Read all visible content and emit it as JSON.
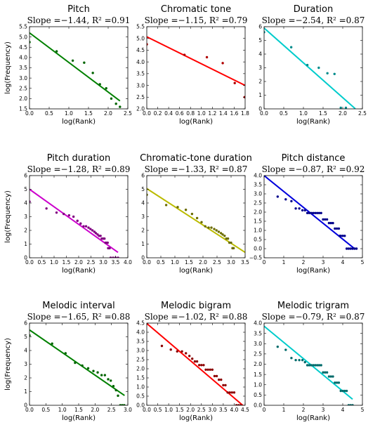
{
  "chart_data": [
    {
      "type": "scatter",
      "title": "Pitch",
      "subtitle": "Slope =−1.44,  R² =0.91",
      "xlabel": "log(Rank)",
      "ylabel": "log(Frequency)",
      "xlim": [
        0,
        2.5
      ],
      "ylim": [
        1.5,
        5.5
      ],
      "xticks": [
        "0.0",
        "0.5",
        "1.0",
        "1.5",
        "2.0",
        "2.5"
      ],
      "yticks": [
        "1.5",
        "2.0",
        "2.5",
        "3.0",
        "3.5",
        "4.0",
        "4.5",
        "5.0",
        "5.5"
      ],
      "fit": {
        "intercept": 5.2,
        "slope": -1.44,
        "x_end": 2.3,
        "color": "#008000"
      },
      "points": [
        [
          0,
          4.75
        ],
        [
          0.69,
          4.3
        ],
        [
          1.1,
          3.85
        ],
        [
          1.39,
          3.75
        ],
        [
          1.61,
          3.25
        ],
        [
          1.79,
          2.7
        ],
        [
          1.95,
          2.5
        ],
        [
          2.08,
          2.0
        ],
        [
          2.2,
          1.75
        ],
        [
          2.3,
          1.6
        ]
      ],
      "point_color": "#006400"
    },
    {
      "type": "scatter",
      "title": "Chromatic tone",
      "subtitle": "Slope =−1.15,  R² =0.79",
      "xlabel": "log(Rank)",
      "ylabel": "",
      "xlim": [
        0,
        1.8
      ],
      "ylim": [
        2.0,
        5.5
      ],
      "xticks": [
        "0.0",
        "0.2",
        "0.4",
        "0.6",
        "0.8",
        "1.0",
        "1.2",
        "1.4",
        "1.6",
        "1.8"
      ],
      "yticks": [
        "2.0",
        "2.5",
        "3.0",
        "3.5",
        "4.0",
        "4.5",
        "5.0",
        "5.5"
      ],
      "fit": {
        "intercept": 5.07,
        "slope": -1.15,
        "x_end": 1.8,
        "color": "#ff0000"
      },
      "points": [
        [
          0,
          4.75
        ],
        [
          0.69,
          4.3
        ],
        [
          1.1,
          4.2
        ],
        [
          1.39,
          3.95
        ],
        [
          1.61,
          3.1
        ],
        [
          1.79,
          2.5
        ]
      ],
      "point_color": "#b00000"
    },
    {
      "type": "scatter",
      "title": "Duration",
      "subtitle": "Slope =−2.54,  R² =0.87",
      "xlabel": "log(Rank)",
      "ylabel": "",
      "xlim": [
        0,
        2.5
      ],
      "ylim": [
        0,
        6
      ],
      "xticks": [
        "0.0",
        "0.5",
        "1.0",
        "1.5",
        "2.0",
        "2.5"
      ],
      "yticks": [
        "0",
        "1",
        "2",
        "3",
        "4",
        "5",
        "6"
      ],
      "fit": {
        "intercept": 5.9,
        "slope": -2.54,
        "x_end": 2.32,
        "color": "#00cccc"
      },
      "points": [
        [
          0,
          5.6
        ],
        [
          0.69,
          4.5
        ],
        [
          1.1,
          3.2
        ],
        [
          1.39,
          3.0
        ],
        [
          1.61,
          2.6
        ],
        [
          1.79,
          2.55
        ],
        [
          1.95,
          0.08
        ],
        [
          2.08,
          0.08
        ]
      ],
      "point_color": "#008b8b"
    },
    {
      "type": "scatter",
      "title": "Pitch duration",
      "subtitle": "Slope =−1.28,  R² =0.89",
      "xlabel": "log(Rank)",
      "ylabel": "log(Frequency)",
      "xlim": [
        0,
        4.0
      ],
      "ylim": [
        0,
        6
      ],
      "xticks": [
        "0.0",
        "0.5",
        "1.0",
        "1.5",
        "2.0",
        "2.5",
        "3.0",
        "3.5",
        "4.0"
      ],
      "yticks": [
        "0",
        "1",
        "2",
        "3",
        "4",
        "5",
        "6"
      ],
      "fit": {
        "intercept": 5.0,
        "slope": -1.28,
        "x_end": 3.6,
        "color": "#cc00cc"
      },
      "points": [
        [
          0,
          4.1
        ],
        [
          0.69,
          3.6
        ],
        [
          1.1,
          3.3
        ],
        [
          1.39,
          3.2
        ],
        [
          1.61,
          3.1
        ],
        [
          1.79,
          3.0
        ],
        [
          1.95,
          2.7
        ],
        [
          2.08,
          2.5
        ],
        [
          2.2,
          2.3
        ],
        [
          2.3,
          2.3
        ],
        [
          2.4,
          2.2
        ],
        [
          2.48,
          2.1
        ],
        [
          2.56,
          2.0
        ],
        [
          2.64,
          1.9
        ],
        [
          2.7,
          1.8
        ],
        [
          2.77,
          1.7
        ],
        [
          2.83,
          1.6
        ],
        [
          2.89,
          1.6
        ],
        [
          2.94,
          1.4
        ],
        [
          3.0,
          1.4
        ],
        [
          3.05,
          1.4
        ],
        [
          3.09,
          1.1
        ],
        [
          3.14,
          1.1
        ],
        [
          3.18,
          1.1
        ],
        [
          3.2,
          0.7
        ],
        [
          3.26,
          0.7
        ],
        [
          3.3,
          0.0
        ],
        [
          3.4,
          0.0
        ],
        [
          3.5,
          0.0
        ],
        [
          3.6,
          0.0
        ]
      ],
      "point_color": "#800080"
    },
    {
      "type": "scatter",
      "title": "Chromatic-tone duration",
      "subtitle": "Slope =−1.33,  R² =0.87",
      "xlabel": "log(Rank)",
      "ylabel": "",
      "xlim": [
        0,
        3.5
      ],
      "ylim": [
        0,
        6
      ],
      "xticks": [
        "0.0",
        "0.5",
        "1.0",
        "1.5",
        "2.0",
        "2.5",
        "3.0",
        "3.5"
      ],
      "yticks": [
        "0",
        "1",
        "2",
        "3",
        "4",
        "5",
        "6"
      ],
      "fit": {
        "intercept": 5.05,
        "slope": -1.33,
        "x_end": 3.5,
        "color": "#bbbb00"
      },
      "points": [
        [
          0,
          4.6
        ],
        [
          0.69,
          3.85
        ],
        [
          1.1,
          3.7
        ],
        [
          1.39,
          3.5
        ],
        [
          1.61,
          3.2
        ],
        [
          1.79,
          2.9
        ],
        [
          1.95,
          2.6
        ],
        [
          2.08,
          2.3
        ],
        [
          2.2,
          2.2
        ],
        [
          2.3,
          2.2
        ],
        [
          2.4,
          2.1
        ],
        [
          2.48,
          2.0
        ],
        [
          2.56,
          1.9
        ],
        [
          2.64,
          1.8
        ],
        [
          2.7,
          1.7
        ],
        [
          2.77,
          1.6
        ],
        [
          2.83,
          1.4
        ],
        [
          2.89,
          1.4
        ],
        [
          2.94,
          1.1
        ],
        [
          3.0,
          1.1
        ],
        [
          3.05,
          0.7
        ],
        [
          3.09,
          0.7
        ]
      ],
      "point_color": "#6b6b00"
    },
    {
      "type": "scatter",
      "title": "Pitch distance",
      "subtitle": "Slope =−0.87,  R² =0.92",
      "xlabel": "log(Rank)",
      "ylabel": "",
      "xlim": [
        0,
        5
      ],
      "ylim": [
        -0.5,
        4.0
      ],
      "xticks": [
        "0",
        "1",
        "2",
        "3",
        "4",
        "5"
      ],
      "yticks": [
        "−0.5",
        "0.0",
        "0.5",
        "1.0",
        "1.5",
        "2.0",
        "2.5",
        "3.0",
        "3.5",
        "4.0"
      ],
      "fit": {
        "intercept": 4.0,
        "slope": -0.87,
        "x_end": 4.6,
        "color": "#0000dd"
      },
      "points": [
        [
          0.69,
          2.85
        ],
        [
          1.1,
          2.7
        ],
        [
          1.39,
          2.6
        ],
        [
          1.61,
          2.2
        ],
        [
          1.79,
          2.2
        ],
        [
          1.95,
          2.1
        ],
        [
          2.08,
          2.1
        ],
        [
          2.2,
          1.95
        ],
        [
          2.3,
          1.95
        ],
        [
          2.4,
          1.95
        ],
        [
          2.5,
          1.95
        ],
        [
          2.6,
          1.95
        ],
        [
          2.7,
          1.95
        ],
        [
          2.8,
          1.95
        ],
        [
          2.9,
          1.95
        ],
        [
          3.0,
          1.6
        ],
        [
          3.1,
          1.6
        ],
        [
          3.2,
          1.6
        ],
        [
          3.3,
          1.4
        ],
        [
          3.4,
          1.4
        ],
        [
          3.5,
          1.4
        ],
        [
          3.6,
          1.1
        ],
        [
          3.7,
          1.1
        ],
        [
          3.8,
          1.1
        ],
        [
          3.85,
          0.7
        ],
        [
          3.9,
          0.7
        ],
        [
          4.0,
          0.7
        ],
        [
          4.1,
          0.7
        ],
        [
          4.2,
          0.0
        ],
        [
          4.3,
          0.0
        ],
        [
          4.4,
          0.0
        ],
        [
          4.5,
          0.0
        ],
        [
          4.6,
          0.0
        ],
        [
          4.7,
          0.0
        ]
      ],
      "point_color": "#00008b"
    },
    {
      "type": "scatter",
      "title": "Melodic interval",
      "subtitle": "Slope =−1.65,  R² =0.88",
      "xlabel": "log(Rank)",
      "ylabel": "log(Frequency)",
      "xlim": [
        0,
        3.0
      ],
      "ylim": [
        0,
        6
      ],
      "xticks": [
        "0.0",
        "0.5",
        "1.0",
        "1.5",
        "2.0",
        "2.5",
        "3.0"
      ],
      "yticks": [
        "0",
        "1",
        "2",
        "3",
        "4",
        "5",
        "6"
      ],
      "fit": {
        "intercept": 5.5,
        "slope": -1.65,
        "x_end": 2.9,
        "color": "#008000"
      },
      "points": [
        [
          0,
          5.1
        ],
        [
          0.69,
          4.5
        ],
        [
          1.1,
          3.8
        ],
        [
          1.39,
          3.1
        ],
        [
          1.61,
          2.9
        ],
        [
          1.79,
          2.7
        ],
        [
          1.95,
          2.5
        ],
        [
          2.08,
          2.4
        ],
        [
          2.2,
          2.2
        ],
        [
          2.3,
          2.2
        ],
        [
          2.4,
          1.9
        ],
        [
          2.48,
          1.8
        ],
        [
          2.56,
          1.4
        ],
        [
          2.64,
          1.1
        ],
        [
          2.7,
          0.7
        ],
        [
          2.77,
          0.0
        ],
        [
          2.83,
          0.0
        ],
        [
          2.89,
          0.0
        ]
      ],
      "point_color": "#006400"
    },
    {
      "type": "scatter",
      "title": "Melodic bigram",
      "subtitle": "Slope =−1.02,  R² =0.88",
      "xlabel": "log(Rank)",
      "ylabel": "",
      "xlim": [
        0,
        4.5
      ],
      "ylim": [
        0,
        4.5
      ],
      "xticks": [
        "0.0",
        "0.5",
        "1.0",
        "1.5",
        "2.0",
        "2.5",
        "3.0",
        "3.5",
        "4.0",
        "4.5"
      ],
      "yticks": [
        "0.0",
        "0.5",
        "1.0",
        "1.5",
        "2.0",
        "2.5",
        "3.0",
        "3.5",
        "4.0",
        "4.5"
      ],
      "fit": {
        "intercept": 4.48,
        "slope": -1.02,
        "x_end": 4.4,
        "color": "#ff0000"
      },
      "points": [
        [
          0.69,
          3.25
        ],
        [
          1.1,
          3.05
        ],
        [
          1.39,
          2.95
        ],
        [
          1.61,
          2.95
        ],
        [
          1.79,
          2.85
        ],
        [
          1.95,
          2.7
        ],
        [
          2.08,
          2.55
        ],
        [
          2.2,
          2.4
        ],
        [
          2.3,
          2.4
        ],
        [
          2.4,
          2.2
        ],
        [
          2.5,
          2.2
        ],
        [
          2.6,
          2.2
        ],
        [
          2.7,
          1.95
        ],
        [
          2.8,
          1.95
        ],
        [
          2.9,
          1.95
        ],
        [
          3.0,
          1.95
        ],
        [
          3.1,
          1.6
        ],
        [
          3.2,
          1.6
        ],
        [
          3.3,
          1.4
        ],
        [
          3.4,
          1.4
        ],
        [
          3.5,
          1.1
        ],
        [
          3.6,
          1.1
        ],
        [
          3.7,
          0.7
        ],
        [
          3.8,
          0.7
        ],
        [
          3.9,
          0.7
        ],
        [
          4.0,
          0.7
        ],
        [
          4.1,
          0.0
        ],
        [
          4.2,
          0.0
        ],
        [
          4.3,
          0.0
        ]
      ],
      "point_color": "#8b0000"
    },
    {
      "type": "scatter",
      "title": "Melodic trigram",
      "subtitle": "Slope =−0.79,  R² =0.87",
      "xlabel": "log(Rank)",
      "ylabel": "",
      "xlim": [
        0,
        5
      ],
      "ylim": [
        0,
        4
      ],
      "xticks": [
        "0",
        "1",
        "2",
        "3",
        "4",
        "5"
      ],
      "yticks": [
        "0.0",
        "0.5",
        "1.0",
        "1.5",
        "2.0",
        "2.5",
        "3.0",
        "3.5",
        "4.0"
      ],
      "fit": {
        "intercept": 3.85,
        "slope": -0.79,
        "x_end": 4.5,
        "color": "#00cccc"
      },
      "points": [
        [
          0.69,
          2.85
        ],
        [
          1.1,
          2.7
        ],
        [
          1.39,
          2.3
        ],
        [
          1.61,
          2.2
        ],
        [
          1.79,
          2.2
        ],
        [
          1.95,
          2.2
        ],
        [
          2.08,
          2.1
        ],
        [
          2.2,
          1.95
        ],
        [
          2.3,
          1.95
        ],
        [
          2.4,
          1.95
        ],
        [
          2.5,
          1.95
        ],
        [
          2.6,
          1.95
        ],
        [
          2.7,
          1.95
        ],
        [
          2.8,
          1.95
        ],
        [
          2.9,
          1.95
        ],
        [
          3.0,
          1.6
        ],
        [
          3.1,
          1.6
        ],
        [
          3.2,
          1.6
        ],
        [
          3.3,
          1.4
        ],
        [
          3.4,
          1.4
        ],
        [
          3.5,
          1.4
        ],
        [
          3.6,
          1.1
        ],
        [
          3.7,
          1.1
        ],
        [
          3.8,
          1.1
        ],
        [
          3.9,
          0.7
        ],
        [
          4.0,
          0.7
        ],
        [
          4.1,
          0.7
        ],
        [
          4.2,
          0.7
        ],
        [
          4.3,
          0.0
        ],
        [
          4.4,
          0.0
        ],
        [
          4.5,
          0.0
        ]
      ],
      "point_color": "#006b6b"
    }
  ]
}
